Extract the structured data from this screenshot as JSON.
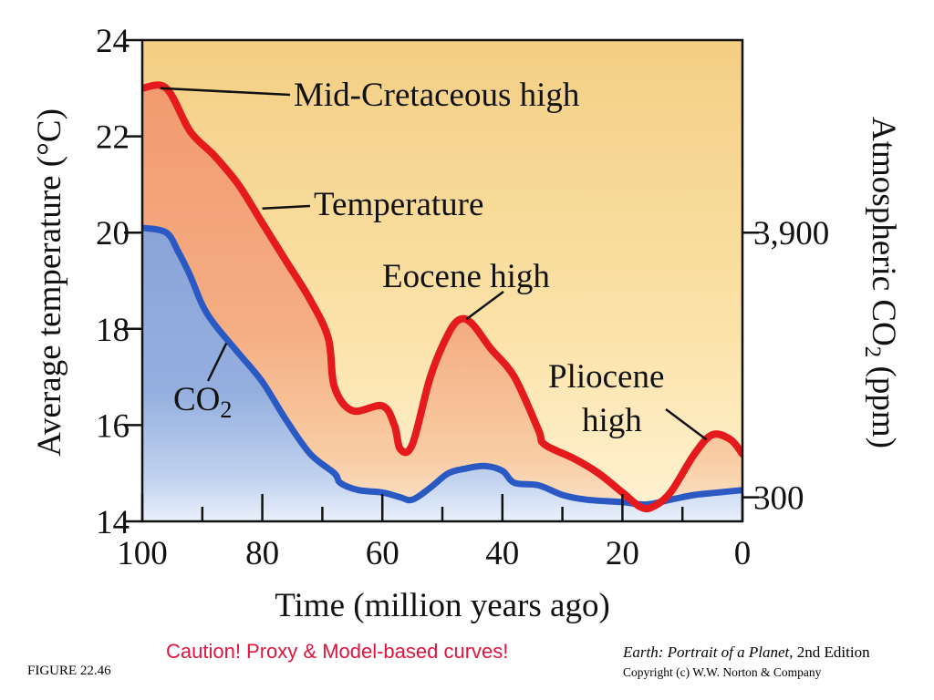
{
  "chart_data": {
    "type": "area",
    "title": "",
    "xlabel": "Time (million years ago)",
    "ylabel_left": "Average temperature (°C)",
    "ylabel_right_main": "Atmospheric CO",
    "ylabel_right_sub": "2",
    "ylabel_right_tail": " (ppm)",
    "xlim": [
      100,
      0
    ],
    "ylim": [
      14,
      24
    ],
    "x_ticks": [
      100,
      80,
      60,
      40,
      20,
      0
    ],
    "x_minor_ticks": [
      90,
      70,
      50,
      30,
      10
    ],
    "y_ticks": [
      14,
      16,
      18,
      20,
      22,
      24
    ],
    "right_axis_ticks": [
      {
        "label": "3,900",
        "at_temperature": 20
      },
      {
        "label": "300",
        "at_temperature": 14.5
      }
    ],
    "series": [
      {
        "name": "Temperature",
        "x": [
          100,
          96,
          92,
          88,
          84,
          80,
          76,
          72,
          69,
          68,
          65,
          60,
          58,
          57,
          55,
          52,
          49,
          47,
          45,
          42,
          38,
          34,
          33,
          28,
          24,
          20,
          17,
          15,
          12,
          8,
          5,
          2,
          0
        ],
        "y": [
          23.0,
          23.0,
          22.1,
          21.6,
          21.0,
          20.2,
          19.4,
          18.6,
          17.8,
          16.8,
          16.3,
          16.4,
          16.0,
          15.5,
          15.6,
          17.0,
          17.9,
          18.2,
          18.1,
          17.6,
          17.0,
          15.9,
          15.6,
          15.3,
          15.0,
          14.6,
          14.3,
          14.3,
          14.6,
          15.4,
          15.8,
          15.7,
          15.4
        ],
        "color": "#e41a1c"
      },
      {
        "name": "CO2",
        "x": [
          100,
          96,
          94,
          92,
          90,
          88,
          84,
          80,
          76,
          72,
          68,
          67,
          64,
          60,
          57,
          55,
          52,
          49,
          46,
          43,
          40,
          38,
          34,
          30,
          26,
          20,
          16,
          12,
          8,
          4,
          0
        ],
        "y": [
          20.1,
          20.0,
          19.6,
          19.1,
          18.5,
          18.1,
          17.5,
          16.9,
          16.1,
          15.4,
          15.0,
          14.8,
          14.65,
          14.6,
          14.5,
          14.45,
          14.7,
          15.0,
          15.1,
          15.15,
          15.05,
          14.8,
          14.75,
          14.55,
          14.45,
          14.4,
          14.35,
          14.45,
          14.55,
          14.6,
          14.65
        ],
        "color": "#2a59c4"
      }
    ],
    "annotations": [
      {
        "text": "Mid-Cretaceous high",
        "points_to": [
          97,
          23.0
        ]
      },
      {
        "text": "Temperature",
        "points_to": [
          80,
          20.5
        ]
      },
      {
        "text": "Eocene high",
        "points_to": [
          46,
          18.2
        ]
      },
      {
        "text_line1": "Pliocene",
        "text_line2": "high",
        "points_to": [
          6,
          15.7
        ]
      },
      {
        "text_main": "CO",
        "text_sub": "2",
        "points_to": [
          86,
          17.7
        ]
      }
    ]
  },
  "figure_number": "FIGURE 22.46",
  "caution_note": "Caution! Proxy & Model-based curves!",
  "credit": {
    "book_title": "Earth: Portrait of a Planet",
    "edition": ", 2nd Edition",
    "copyright": "Copyright (c) W.W. Norton & Company"
  }
}
